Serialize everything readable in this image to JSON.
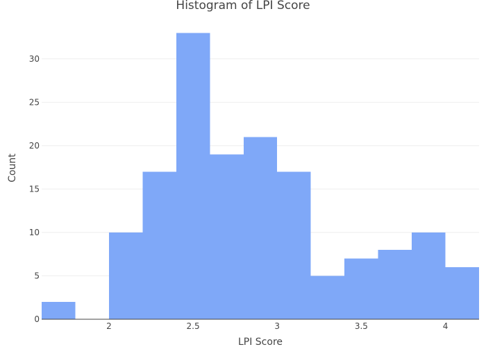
{
  "chart_data": {
    "type": "bar",
    "subtype": "histogram",
    "title": "Histogram of LPI Score",
    "xlabel": "LPI Score",
    "ylabel": "Count",
    "bin_width": 0.2,
    "bins": [
      {
        "x0": 1.6,
        "x1": 1.8,
        "count": 2
      },
      {
        "x0": 1.8,
        "x1": 2.0,
        "count": 0
      },
      {
        "x0": 2.0,
        "x1": 2.2,
        "count": 10
      },
      {
        "x0": 2.2,
        "x1": 2.4,
        "count": 17
      },
      {
        "x0": 2.4,
        "x1": 2.6,
        "count": 33
      },
      {
        "x0": 2.6,
        "x1": 2.8,
        "count": 19
      },
      {
        "x0": 2.8,
        "x1": 3.0,
        "count": 21
      },
      {
        "x0": 3.0,
        "x1": 3.2,
        "count": 17
      },
      {
        "x0": 3.2,
        "x1": 3.4,
        "count": 5
      },
      {
        "x0": 3.4,
        "x1": 3.6,
        "count": 7
      },
      {
        "x0": 3.6,
        "x1": 3.8,
        "count": 8
      },
      {
        "x0": 3.8,
        "x1": 4.0,
        "count": 10
      },
      {
        "x0": 4.0,
        "x1": 4.2,
        "count": 6
      }
    ],
    "xlim": [
      1.6,
      4.2
    ],
    "ylim": [
      0,
      34.7
    ],
    "xticks": [
      2,
      2.5,
      3,
      3.5,
      4
    ],
    "xtick_labels": [
      "2",
      "2.5",
      "3",
      "3.5",
      "4"
    ],
    "yticks": [
      0,
      5,
      10,
      15,
      20,
      25,
      30
    ],
    "ytick_labels": [
      "0",
      "5",
      "10",
      "15",
      "20",
      "25",
      "30"
    ],
    "grid": true,
    "legend": "none",
    "bar_color": "#7FA8F8",
    "grid_color": "#eeeeee",
    "axis_line_color": "#444444",
    "text_color": "#444444"
  }
}
